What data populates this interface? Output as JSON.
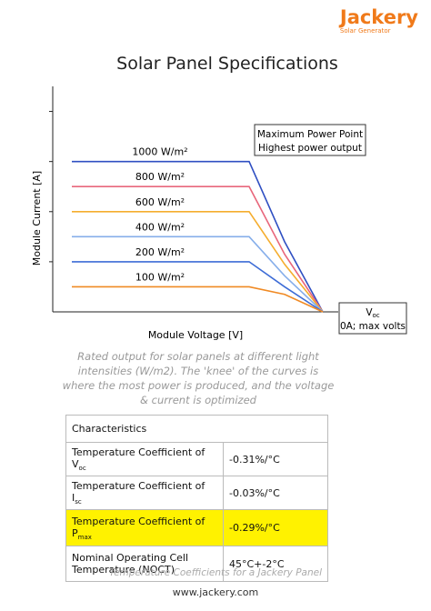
{
  "brand": {
    "name": "Jackery",
    "tagline": "Solar Generator"
  },
  "chart_data": {
    "type": "line",
    "title": "Solar Panel Specifications",
    "x_label": "Module Voltage [V]",
    "y_label": "Module Current [A]",
    "x": [
      7,
      72,
      85,
      99
    ],
    "xlim": [
      0,
      104
    ],
    "ylim": [
      0,
      4.5
    ],
    "yticks": [
      1,
      2,
      3,
      4
    ],
    "series": [
      {
        "name": "1000 W/m²",
        "color": "#2f4fc2",
        "values": [
          3,
          3,
          1.4,
          0
        ]
      },
      {
        "name": "800 W/m²",
        "color": "#e8677c",
        "values": [
          2.5,
          2.5,
          1.15,
          0
        ]
      },
      {
        "name": "600 W/m²",
        "color": "#f5ad2e",
        "values": [
          2,
          2,
          0.95,
          0
        ]
      },
      {
        "name": "400 W/m²",
        "color": "#86aeea",
        "values": [
          1.5,
          1.5,
          0.72,
          0
        ]
      },
      {
        "name": "200 W/m²",
        "color": "#3d6cd6",
        "values": [
          1,
          1,
          0.5,
          0
        ]
      },
      {
        "name": "100 W/m²",
        "color": "#f08a24",
        "values": [
          0.5,
          0.5,
          0.35,
          0
        ]
      }
    ],
    "annotations": [
      "Maximum Power Point",
      "Highest power output"
    ],
    "voc_label": {
      "symbol": "V",
      "subscript": "oc",
      "note": "0A; max volts"
    }
  },
  "caption": "Rated output for solar panels at different light intensities (W/m2). The 'knee' of the curves is where the most power is produced, and the voltage & current is optimized",
  "table": {
    "header": "Characteristics",
    "rows": [
      [
        {
          "text": "Temperature Coefficient of V",
          "sub": "oc"
        },
        "-0.31%/°C"
      ],
      [
        {
          "text": "Temperature Coefficient of I",
          "sub": "sc"
        },
        "-0.03%/°C"
      ],
      [
        {
          "text": "Temperature Coefficient of P",
          "sub": "max"
        },
        "-0.29%/°C"
      ],
      [
        {
          "text": "Nominal Operating Cell Temperature (NOCT)",
          "sub": null
        },
        "45°C+-2°C"
      ]
    ]
  },
  "table_caption": "Temperature Coefficients for a Jackery Panel",
  "footer": "www.jackery.com"
}
